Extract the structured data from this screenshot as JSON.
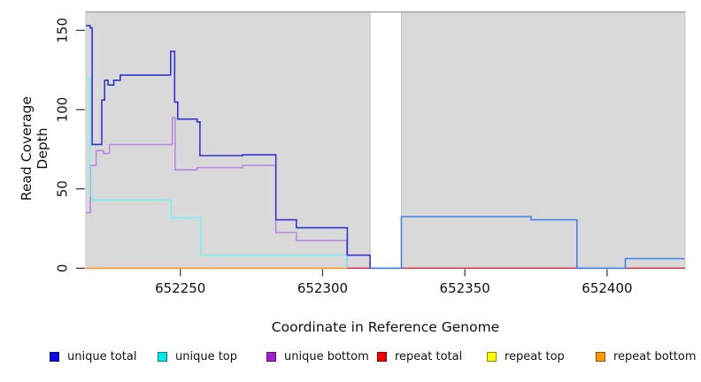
{
  "chart_data": {
    "type": "line",
    "subtype": "step-coverage-plot",
    "title": "",
    "xlabel": "Coordinate in Reference Genome",
    "ylabel": "Read Coverage Depth",
    "xlim": [
      652216.8,
      652427.4
    ],
    "ylim": [
      0,
      161.6
    ],
    "x_ticks": [
      652250,
      652300,
      652350,
      652400
    ],
    "y_ticks": [
      0,
      50,
      100,
      150
    ],
    "grid": false,
    "background_regions": {
      "fill": "#d9d9d9",
      "stroke": "#c6c6c6",
      "top_line_color": "#999999",
      "x_ranges": [
        [
          652216.8,
          652316.7
        ],
        [
          652327.7,
          652427.4
        ]
      ]
    },
    "series": [
      {
        "name": "repeat total",
        "color": "#d24054",
        "points": [
          [
            652216.8,
            0
          ],
          [
            652427.4,
            0
          ]
        ]
      },
      {
        "name": "repeat top",
        "color": "#f0e200",
        "points": [
          [
            652216.8,
            0
          ],
          [
            652308.5,
            0
          ]
        ]
      },
      {
        "name": "repeat bottom",
        "color": "#ffa033",
        "points": [
          [
            652216.8,
            0
          ],
          [
            652308.5,
            0
          ]
        ]
      },
      {
        "name": "unique bottom",
        "color": "#b68ae0",
        "points": [
          [
            652216.8,
            35
          ],
          [
            652218.4,
            35
          ],
          [
            652218.4,
            64.8
          ],
          [
            652220.4,
            64.8
          ],
          [
            652220.4,
            74.1
          ],
          [
            652223,
            74.1
          ],
          [
            652223,
            72.3
          ],
          [
            652225.1,
            72.3
          ],
          [
            652225.1,
            77.9
          ],
          [
            652247.2,
            77.9
          ],
          [
            652247.2,
            95
          ],
          [
            652248.2,
            95
          ],
          [
            652248.2,
            62
          ],
          [
            652255.9,
            62
          ],
          [
            652255.9,
            63.4
          ],
          [
            652271.9,
            63.4
          ],
          [
            652271.9,
            64.8
          ],
          [
            652283.6,
            64.8
          ],
          [
            652283.6,
            22.5
          ],
          [
            652290.8,
            22.5
          ],
          [
            652290.8,
            17.4
          ],
          [
            652308.5,
            17.4
          ],
          [
            652308.5,
            0
          ]
        ]
      },
      {
        "name": "unique top",
        "color": "#7deeee",
        "points": [
          [
            652216.8,
            120
          ],
          [
            652218.2,
            120
          ],
          [
            652218.2,
            46
          ],
          [
            652219.2,
            46
          ],
          [
            652219.2,
            43
          ],
          [
            652246.8,
            43
          ],
          [
            652246.8,
            31.8
          ],
          [
            652257.3,
            31.8
          ],
          [
            652257.3,
            8.2
          ],
          [
            652308.4,
            8.2
          ],
          [
            652308.4,
            0
          ]
        ]
      },
      {
        "name": "unique total (left segment)",
        "color": "#3434d6",
        "points": [
          [
            652216.8,
            153
          ],
          [
            652218.3,
            153
          ],
          [
            652218.3,
            151.5
          ],
          [
            652219,
            151.5
          ],
          [
            652219,
            78
          ],
          [
            652222.4,
            78
          ],
          [
            652222.4,
            106
          ],
          [
            652223.4,
            106
          ],
          [
            652223.4,
            118.5
          ],
          [
            652224.6,
            118.5
          ],
          [
            652224.6,
            115.5
          ],
          [
            652226.6,
            115.5
          ],
          [
            652226.6,
            118.5
          ],
          [
            652228.9,
            118.5
          ],
          [
            652228.9,
            121.8
          ],
          [
            652246.6,
            121.8
          ],
          [
            652246.6,
            136.8
          ],
          [
            652248,
            136.8
          ],
          [
            652248,
            104.8
          ],
          [
            652249.1,
            104.8
          ],
          [
            652249.1,
            94
          ],
          [
            652255.9,
            94
          ],
          [
            652255.9,
            92.3
          ],
          [
            652256.9,
            92.3
          ],
          [
            652256.9,
            71
          ],
          [
            652271.9,
            71
          ],
          [
            652271.9,
            71.5
          ],
          [
            652283.6,
            71.5
          ],
          [
            652283.6,
            30.5
          ],
          [
            652290.8,
            30.5
          ],
          [
            652290.8,
            25.5
          ],
          [
            652308.7,
            25.5
          ],
          [
            652308.7,
            8.2
          ],
          [
            652316.7,
            8.2
          ],
          [
            652316.7,
            0
          ]
        ]
      },
      {
        "name": "unique total (right segment)",
        "color": "#4183ea",
        "points": [
          [
            652316.7,
            0
          ],
          [
            652327.7,
            0
          ],
          [
            652327.7,
            32.5
          ],
          [
            652373.3,
            32.5
          ],
          [
            652373.3,
            30.5
          ],
          [
            652389.4,
            30.5
          ],
          [
            652389.4,
            0
          ],
          [
            652406.4,
            0
          ],
          [
            652406.4,
            6
          ],
          [
            652427.2,
            6
          ]
        ]
      }
    ],
    "legend": {
      "position": "bottom",
      "items": [
        {
          "label": "unique total",
          "color": "#0808e8"
        },
        {
          "label": "unique top",
          "color": "#00eaea"
        },
        {
          "label": "unique bottom",
          "color": "#a31fd4"
        },
        {
          "label": "repeat total",
          "color": "#f00000"
        },
        {
          "label": "repeat top",
          "color": "#ffff00"
        },
        {
          "label": "repeat bottom",
          "color": "#ff9800"
        }
      ]
    }
  }
}
